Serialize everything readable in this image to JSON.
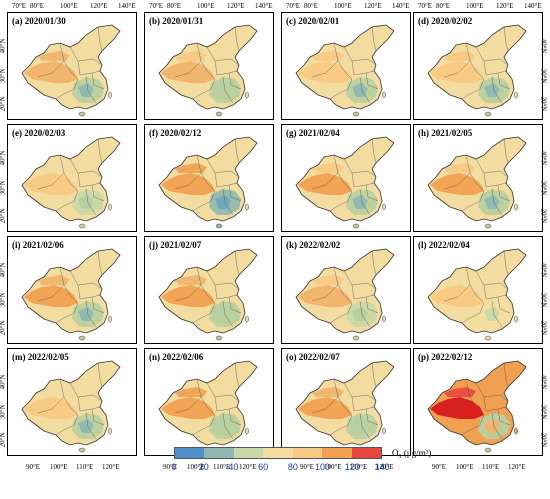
{
  "panels": [
    {
      "label": "(a) 2020/01/30",
      "fill": "#f3dca0",
      "hot": [
        "#f0b26a",
        "#f0b26a"
      ],
      "cool": [
        "#b8cfa0",
        "#8fb9b0"
      ]
    },
    {
      "label": "(b) 2020/01/31",
      "fill": "#f3dca0",
      "hot": [
        "#f0b26a",
        "#f7c982"
      ],
      "cool": [
        "#b8cfa0",
        "#b8cfa0"
      ]
    },
    {
      "label": "(c) 2020/02/01",
      "fill": "#f3dca0",
      "hot": [
        "#f7c982",
        "#f7c982"
      ],
      "cool": [
        "#b8cfa0",
        "#8fb9b0"
      ]
    },
    {
      "label": "(d) 2020/02/02",
      "fill": "#f3dca0",
      "hot": [
        "#f7c982",
        "#f7c982"
      ],
      "cool": [
        "#b8cfa0",
        "#8fb9b0"
      ]
    },
    {
      "label": "(e) 2020/02/03",
      "fill": "#f3dca0",
      "hot": [
        "#f7c982",
        "#f3dca0"
      ],
      "cool": [
        "#c9d8a8",
        "#b8cfa0"
      ]
    },
    {
      "label": "(f) 2020/02/12",
      "fill": "#f3dca0",
      "hot": [
        "#f0a050",
        "#f0a050"
      ],
      "cool": [
        "#8fb9b0",
        "#6ea6b8"
      ]
    },
    {
      "label": "(g) 2021/02/04",
      "fill": "#f3dca0",
      "hot": [
        "#f0a050",
        "#f7c982"
      ],
      "cool": [
        "#b8cfa0",
        "#8fb9b0"
      ]
    },
    {
      "label": "(h) 2021/02/05",
      "fill": "#f3dca0",
      "hot": [
        "#f0a050",
        "#f7c982"
      ],
      "cool": [
        "#b8cfa0",
        "#8fb9b0"
      ]
    },
    {
      "label": "(i) 2021/02/06",
      "fill": "#f3dca0",
      "hot": [
        "#f0a050",
        "#f0b26a"
      ],
      "cool": [
        "#b8cfa0",
        "#8fb9b0"
      ]
    },
    {
      "label": "(j) 2021/02/07",
      "fill": "#f3dca0",
      "hot": [
        "#f0a050",
        "#f0b26a"
      ],
      "cool": [
        "#b8cfa0",
        "#b8cfa0"
      ]
    },
    {
      "label": "(k) 2022/02/02",
      "fill": "#f3dca0",
      "hot": [
        "#f0b26a",
        "#f7c982"
      ],
      "cool": [
        "#c9d8a8",
        "#b8cfa0"
      ]
    },
    {
      "label": "(l) 2022/02/04",
      "fill": "#f3dca0",
      "hot": [
        "#f7c982",
        "#f3dca0"
      ],
      "cool": [
        "#f3dca0",
        "#c9d8a8"
      ]
    },
    {
      "label": "(m) 2022/02/05",
      "fill": "#f3dca0",
      "hot": [
        "#f7c982",
        "#f3dca0"
      ],
      "cool": [
        "#b8cfa0",
        "#8fb9b0"
      ]
    },
    {
      "label": "(n) 2022/02/06",
      "fill": "#f3dca0",
      "hot": [
        "#f0a050",
        "#f0a050"
      ],
      "cool": [
        "#b8cfa0",
        "#b8cfa0"
      ]
    },
    {
      "label": "(o) 2022/02/07",
      "fill": "#f3dca0",
      "hot": [
        "#f0a050",
        "#f0b26a"
      ],
      "cool": [
        "#b8cfa0",
        "#b8cfa0"
      ]
    },
    {
      "label": "(p) 2022/02/12",
      "fill": "#f0a050",
      "hot": [
        "#d7191c",
        "#e8453c"
      ],
      "cool": [
        "#b8cfa0",
        "#f0b26a"
      ]
    }
  ],
  "axes": {
    "top_lon_ticks": [
      "70°E",
      "80°E",
      "100°E",
      "120°E",
      "140°E"
    ],
    "bottom_lon_ticks": [
      "90°E",
      "100°E",
      "110°E",
      "120°E"
    ],
    "lat_ticks": [
      "40°N",
      "30°N",
      "20°N"
    ]
  },
  "colorbar": {
    "title": "O₃ (μg/m³)",
    "ticks": [
      "0",
      "20",
      "40",
      "60",
      "80",
      "100",
      "120",
      "140"
    ],
    "colors": [
      "#4f8fc9",
      "#8fb9b0",
      "#c9d8a8",
      "#f3dca0",
      "#f7c982",
      "#f0a050",
      "#e8453c"
    ]
  },
  "colors": {
    "border": "#333333",
    "province_line": "#555555",
    "ocean": "#ffffff"
  }
}
